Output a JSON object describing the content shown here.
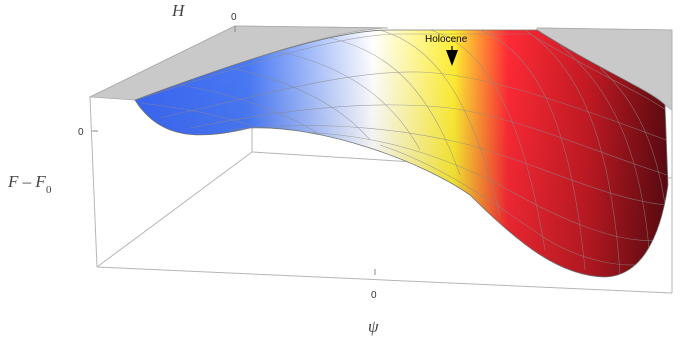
{
  "figure": {
    "axes": {
      "x_label": "ψ",
      "y_label": "H",
      "z_label_main": "F – F",
      "z_label_sub": "0"
    },
    "ticks": {
      "x_zero": "0",
      "y_zero": "0",
      "z_zero": "0"
    },
    "annotation": {
      "text": "Holocene"
    },
    "colors": {
      "cold": "#3a66f5",
      "neutral": "#ffffff",
      "mid": "#ffee33",
      "warm": "#ff2a36",
      "hot": "#5a0a10",
      "cap_fill": "#c9c9c9",
      "mesh_line": "#8a8a8a",
      "box_line": "#b5b5b5"
    }
  }
}
